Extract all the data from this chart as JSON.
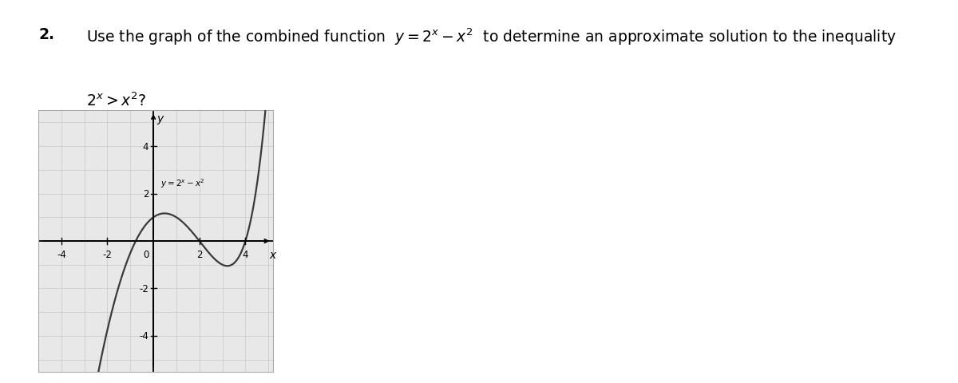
{
  "curve_label": "$y = 2^x - x^2$",
  "xlim": [
    -5,
    5.2
  ],
  "ylim": [
    -5.5,
    5.5
  ],
  "xticks": [
    -4,
    -2,
    2,
    4
  ],
  "yticks": [
    -4,
    -2,
    2,
    4
  ],
  "graph_bg": "#e8e8e8",
  "curve_color": "#3a3a3a",
  "axis_color": "#000000",
  "grid_color": "#c8c8c8",
  "curve_linewidth": 1.6,
  "title_line1": "Use the graph of the combined function  $y = 2^x - x^2$  to determine an approximate solution to the inequality",
  "title_line2": "$2^x > x^2$?",
  "number": "2.",
  "font_size_title": 13.5,
  "tick_fontsize": 8.5,
  "label_fontsize": 10
}
